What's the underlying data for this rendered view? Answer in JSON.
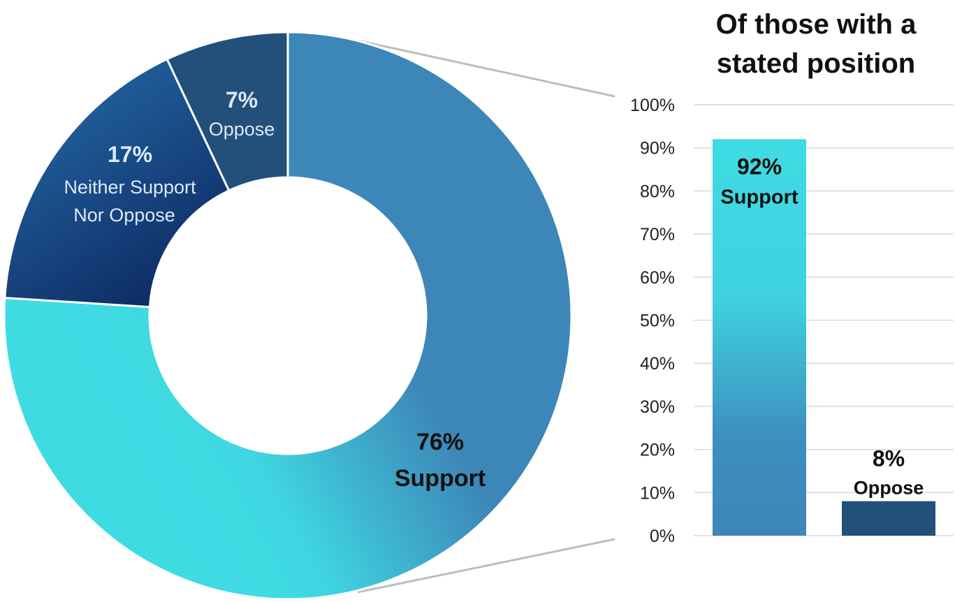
{
  "chart_data": [
    {
      "type": "pie",
      "subtype": "donut",
      "slices": [
        {
          "key": "support",
          "value_pct": "76%",
          "label": "Support",
          "value": 76
        },
        {
          "key": "neither",
          "value_pct": "17%",
          "label_lines": [
            "Neither Support",
            "Nor Oppose"
          ],
          "value": 17
        },
        {
          "key": "oppose",
          "value_pct": "7%",
          "label": "Oppose",
          "value": 7
        }
      ],
      "colors": {
        "support_light": "#3fdbe3",
        "support_dark": "#3d86b8",
        "neither_light": "#2670ad",
        "neither_dark": "#0f2d66",
        "oppose": "#22507a"
      }
    },
    {
      "type": "bar",
      "title_lines": [
        "Of those with a",
        "stated position"
      ],
      "categories": [
        "Support",
        "Oppose"
      ],
      "values": [
        92,
        8
      ],
      "value_labels": [
        "92%",
        "8%"
      ],
      "ylim": [
        0,
        100
      ],
      "yticks": [
        0,
        10,
        20,
        30,
        40,
        50,
        60,
        70,
        80,
        90,
        100
      ],
      "ytick_labels": [
        "0%",
        "10%",
        "20%",
        "30%",
        "40%",
        "50%",
        "60%",
        "70%",
        "80%",
        "90%",
        "100%"
      ],
      "grid": true,
      "colors": {
        "support_top": "#3fdbe3",
        "support_bottom": "#3d86b8",
        "oppose": "#22507a",
        "grid": "#d9d9d9"
      }
    }
  ]
}
